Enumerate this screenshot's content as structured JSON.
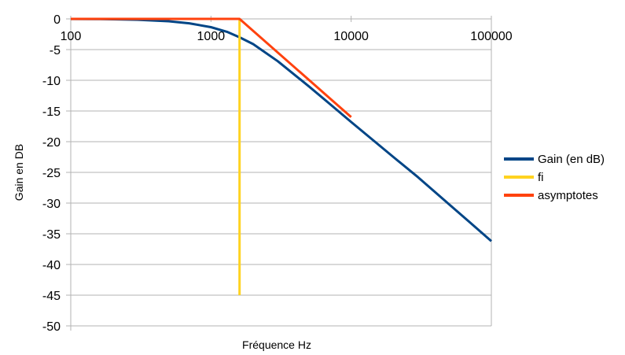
{
  "chart_data": {
    "type": "line",
    "xlabel": "Fréquence Hz",
    "ylabel": "Gain en DB",
    "x_scale": "log",
    "xlim": [
      100,
      100000
    ],
    "ylim": [
      -50,
      0
    ],
    "x_ticks": [
      "100",
      "1000",
      "10000",
      "100000"
    ],
    "y_ticks": [
      "0",
      "-5",
      "-10",
      "-15",
      "-20",
      "-25",
      "-30",
      "-35",
      "-40",
      "-45",
      "-50"
    ],
    "grid": "horizontal",
    "legend_position": "right",
    "series": [
      {
        "name": "Gain (en dB)",
        "color": "#004586",
        "x": [
          100,
          150,
          200,
          300,
          500,
          700,
          1000,
          1300,
          1600,
          2000,
          3000,
          5000,
          7000,
          10000,
          20000,
          30000,
          50000,
          70000,
          100000
        ],
        "y": [
          -0.01,
          -0.03,
          -0.06,
          -0.14,
          -0.38,
          -0.72,
          -1.35,
          -2.1,
          -3.0,
          -4.1,
          -6.9,
          -11.0,
          -13.8,
          -16.8,
          -22.5,
          -25.8,
          -30.2,
          -33.1,
          -36.2
        ]
      },
      {
        "name": "fi",
        "color": "#ffd320",
        "x": [
          1600,
          1600
        ],
        "y": [
          0,
          -45
        ]
      },
      {
        "name": "asymptotes",
        "color": "#ff420e",
        "x": [
          100,
          1600,
          10000
        ],
        "y": [
          0,
          0,
          -16
        ]
      }
    ]
  }
}
